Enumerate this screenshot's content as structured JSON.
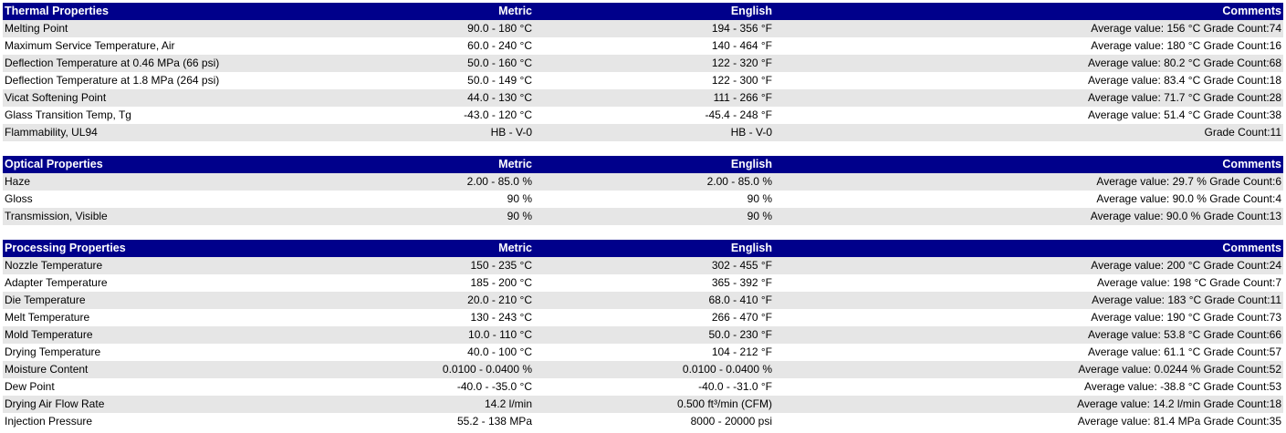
{
  "sections": [
    {
      "title": "Thermal Properties",
      "headers": {
        "metric": "Metric",
        "english": "English",
        "comments": "Comments"
      },
      "rows": [
        {
          "name": "Melting Point",
          "metric": "90.0 - 180 °C",
          "english": "194 - 356 °F",
          "comments": "Average value: 156 °C Grade Count:74"
        },
        {
          "name": "Maximum Service Temperature, Air",
          "metric": "60.0 - 240 °C",
          "english": "140 - 464 °F",
          "comments": "Average value: 180 °C Grade Count:16"
        },
        {
          "name": "Deflection Temperature at 0.46 MPa (66 psi)",
          "metric": "50.0 - 160 °C",
          "english": "122 - 320 °F",
          "comments": "Average value: 80.2 °C Grade Count:68"
        },
        {
          "name": "Deflection Temperature at 1.8 MPa (264 psi)",
          "metric": "50.0 - 149 °C",
          "english": "122 - 300 °F",
          "comments": "Average value: 83.4 °C Grade Count:18"
        },
        {
          "name": "Vicat Softening Point",
          "metric": "44.0 - 130 °C",
          "english": "111 - 266 °F",
          "comments": "Average value: 71.7 °C Grade Count:28"
        },
        {
          "name": "Glass Transition Temp, Tg",
          "metric": "-43.0 - 120 °C",
          "english": "-45.4 - 248 °F",
          "comments": "Average value: 51.4 °C Grade Count:38"
        },
        {
          "name": "Flammability, UL94",
          "metric": "HB - V-0",
          "english": "HB - V-0",
          "comments": "Grade Count:11"
        }
      ]
    },
    {
      "title": "Optical Properties",
      "headers": {
        "metric": "Metric",
        "english": "English",
        "comments": "Comments"
      },
      "rows": [
        {
          "name": "Haze",
          "metric": "2.00 - 85.0 %",
          "english": "2.00 - 85.0 %",
          "comments": "Average value: 29.7 % Grade Count:6"
        },
        {
          "name": "Gloss",
          "metric": "90 %",
          "english": "90 %",
          "comments": "Average value: 90.0 % Grade Count:4"
        },
        {
          "name": "Transmission, Visible",
          "metric": "90 %",
          "english": "90 %",
          "comments": "Average value: 90.0 % Grade Count:13"
        }
      ]
    },
    {
      "title": "Processing Properties",
      "headers": {
        "metric": "Metric",
        "english": "English",
        "comments": "Comments"
      },
      "rows": [
        {
          "name": "Nozzle Temperature",
          "metric": "150 - 235 °C",
          "english": "302 - 455 °F",
          "comments": "Average value: 200 °C Grade Count:24"
        },
        {
          "name": "Adapter Temperature",
          "metric": "185 - 200 °C",
          "english": "365 - 392 °F",
          "comments": "Average value: 198 °C Grade Count:7"
        },
        {
          "name": "Die Temperature",
          "metric": "20.0 - 210 °C",
          "english": "68.0 - 410 °F",
          "comments": "Average value: 183 °C Grade Count:11"
        },
        {
          "name": "Melt Temperature",
          "metric": "130 - 243 °C",
          "english": "266 - 470 °F",
          "comments": "Average value: 190 °C Grade Count:73"
        },
        {
          "name": "Mold Temperature",
          "metric": "10.0 - 110 °C",
          "english": "50.0 - 230 °F",
          "comments": "Average value: 53.8 °C Grade Count:66"
        },
        {
          "name": "Drying Temperature",
          "metric": "40.0 - 100 °C",
          "english": "104 - 212 °F",
          "comments": "Average value: 61.1 °C Grade Count:57"
        },
        {
          "name": "Moisture Content",
          "metric": "0.0100 - 0.0400 %",
          "english": "0.0100 - 0.0400 %",
          "comments": "Average value: 0.0244 % Grade Count:52"
        },
        {
          "name": "Dew Point",
          "metric": "-40.0 - -35.0 °C",
          "english": "-40.0 - -31.0 °F",
          "comments": "Average value: -38.8 °C Grade Count:53"
        },
        {
          "name": "Drying Air Flow Rate",
          "metric": "14.2 l/min",
          "english": "0.500 ft³/min (CFM)",
          "comments": "Average value: 14.2 l/min Grade Count:18"
        },
        {
          "name": "Injection Pressure",
          "metric": "55.2 - 138 MPa",
          "english": "8000 - 20000 psi",
          "comments": "Average value: 81.4 MPa Grade Count:35"
        }
      ]
    }
  ],
  "colors": {
    "header_bg": "#00008b",
    "header_text": "#ffffff",
    "row_alt": "#e6e6e6"
  }
}
